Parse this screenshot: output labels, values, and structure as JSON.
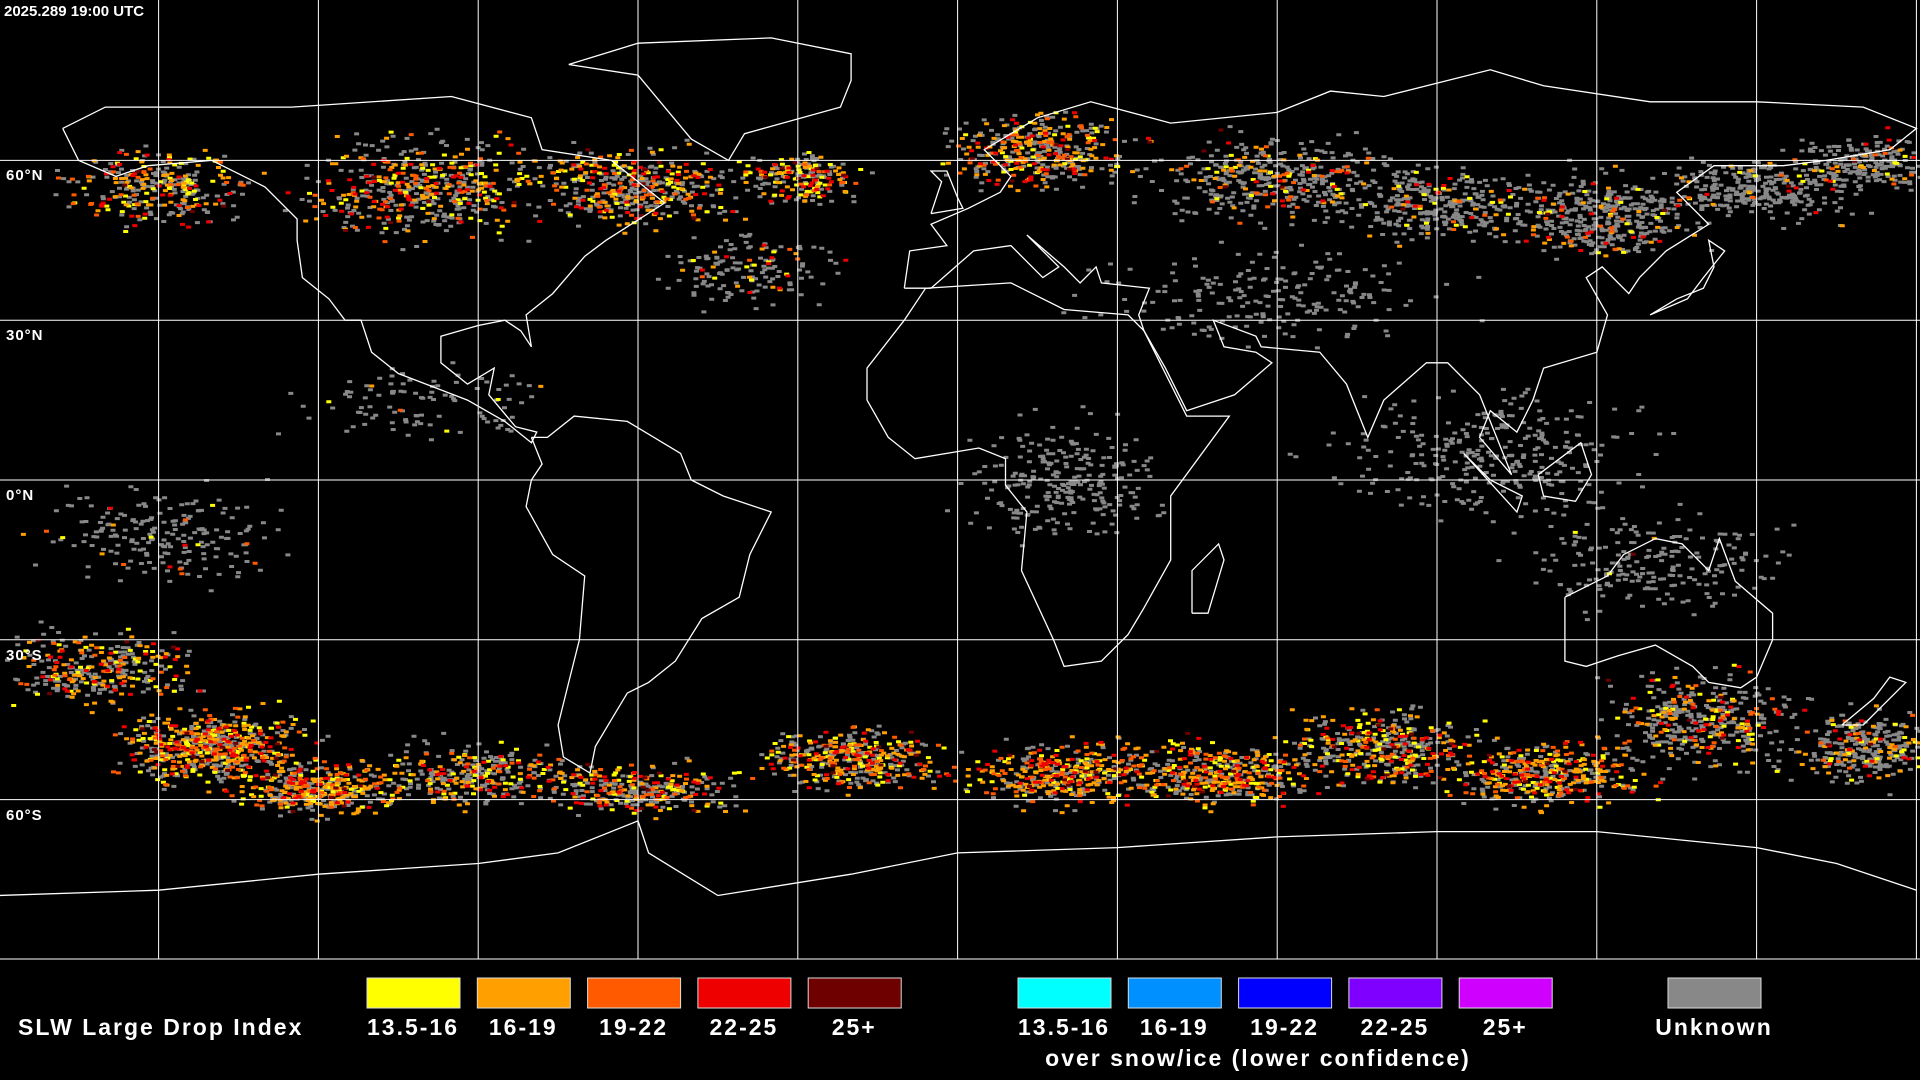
{
  "header": {
    "timestamp": "2025.289 19:00 UTC"
  },
  "map": {
    "latitude_labels": [
      "60°N",
      "30°N",
      "0°N",
      "30°S",
      "60°S"
    ]
  },
  "legend": {
    "title": "SLW Large Drop Index",
    "items": [
      {
        "label": "13.5-16",
        "color": "#ffff00"
      },
      {
        "label": "16-19",
        "color": "#ffa000"
      },
      {
        "label": "19-22",
        "color": "#ff5a00"
      },
      {
        "label": "22-25",
        "color": "#ee0000"
      },
      {
        "label": "25+",
        "color": "#6e0000"
      }
    ],
    "snow_ice_items": [
      {
        "label": "13.5-16",
        "color": "#00ffff"
      },
      {
        "label": "16-19",
        "color": "#0090ff"
      },
      {
        "label": "19-22",
        "color": "#0000ff"
      },
      {
        "label": "22-25",
        "color": "#8000ff"
      },
      {
        "label": "25+",
        "color": "#d000ff"
      }
    ],
    "snow_ice_note": "over snow/ice (lower confidence)",
    "unknown": {
      "label": "Unknown",
      "color": "#888888"
    }
  }
}
